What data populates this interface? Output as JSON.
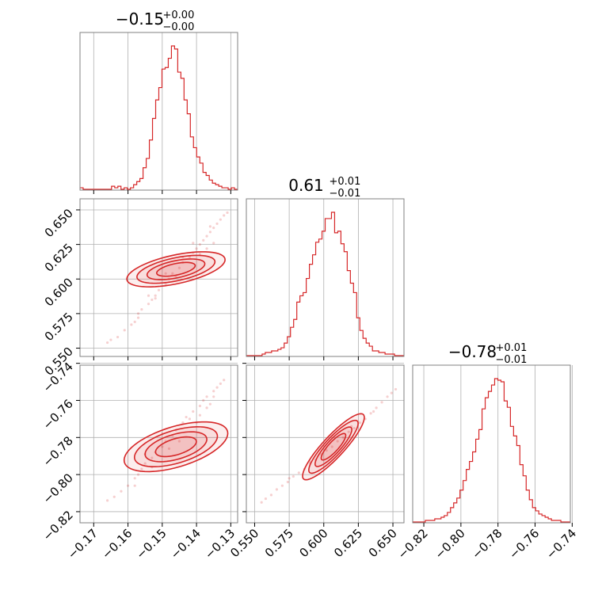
{
  "colors": {
    "accent": "#d62728",
    "grid": "#b0b0b0",
    "frame": "#808080"
  },
  "chart_data": {
    "type": "corner",
    "grid": true,
    "params": [
      {
        "title": {
          "base": "−0.15",
          "sup": "+0.00",
          "sub": "−0.00"
        },
        "range": [
          -0.174,
          -0.128
        ],
        "ticks": [
          -0.17,
          -0.16,
          -0.15,
          -0.14,
          -0.13
        ],
        "tick_labels": [
          "−0.17",
          "−0.16",
          "−0.15",
          "−0.14",
          "−0.13"
        ],
        "hist": [
          0.01,
          0.0,
          0.0,
          0.0,
          0.0,
          0.0,
          0.0,
          0.0,
          0.0,
          0.0,
          0.02,
          0.01,
          0.02,
          0.0,
          0.01,
          0.0,
          0.01,
          0.03,
          0.05,
          0.07,
          0.14,
          0.2,
          0.32,
          0.46,
          0.58,
          0.66,
          0.78,
          0.79,
          0.85,
          0.93,
          0.91,
          0.76,
          0.72,
          0.58,
          0.49,
          0.34,
          0.27,
          0.21,
          0.17,
          0.11,
          0.09,
          0.06,
          0.04,
          0.03,
          0.02,
          0.01,
          0.01,
          0.0,
          0.01,
          0.0
        ]
      },
      {
        "title": {
          "base": "0.61",
          "sup": "+0.01",
          "sub": "−0.01"
        },
        "range": [
          0.544,
          0.658
        ],
        "ticks": [
          0.55,
          0.575,
          0.6,
          0.625,
          0.65
        ],
        "tick_labels": [
          "0.550",
          "0.575",
          "0.600",
          "0.625",
          "0.650"
        ],
        "hist": [
          0.0,
          0.0,
          0.0,
          0.0,
          0.0,
          0.01,
          0.02,
          0.02,
          0.03,
          0.03,
          0.04,
          0.05,
          0.08,
          0.12,
          0.18,
          0.23,
          0.34,
          0.38,
          0.4,
          0.49,
          0.58,
          0.64,
          0.72,
          0.74,
          0.79,
          0.87,
          0.87,
          0.91,
          0.78,
          0.79,
          0.71,
          0.66,
          0.54,
          0.46,
          0.4,
          0.24,
          0.16,
          0.11,
          0.08,
          0.06,
          0.03,
          0.03,
          0.02,
          0.02,
          0.01,
          0.01,
          0.01,
          0.0,
          0.0,
          0.0
        ]
      },
      {
        "title": {
          "base": "−0.78",
          "sup": "+0.01",
          "sub": "−0.01"
        },
        "range": [
          -0.826,
          -0.741
        ],
        "ticks": [
          -0.82,
          -0.8,
          -0.78,
          -0.76,
          -0.74
        ],
        "tick_labels": [
          "−0.82",
          "−0.80",
          "−0.78",
          "−0.76",
          "−0.74"
        ],
        "hist": [
          0.0,
          0.0,
          0.0,
          0.0,
          0.01,
          0.01,
          0.01,
          0.02,
          0.02,
          0.03,
          0.04,
          0.06,
          0.09,
          0.12,
          0.15,
          0.2,
          0.26,
          0.33,
          0.38,
          0.44,
          0.52,
          0.58,
          0.71,
          0.78,
          0.82,
          0.86,
          0.9,
          0.89,
          0.88,
          0.76,
          0.72,
          0.6,
          0.54,
          0.48,
          0.36,
          0.29,
          0.2,
          0.14,
          0.09,
          0.07,
          0.05,
          0.04,
          0.03,
          0.02,
          0.01,
          0.01,
          0.01,
          0.0,
          0.0,
          0.0
        ]
      }
    ],
    "pairs": [
      {
        "x_param": 0,
        "y_param": 1,
        "center": [
          -0.146,
          0.607
        ],
        "angle_deg": 38.7,
        "contour_radii": [
          [
            0.0169,
            0.00075
          ],
          [
            0.0134,
            0.0006
          ],
          [
            0.0099,
            0.00045
          ],
          [
            0.0066,
            0.0003
          ]
        ],
        "scatter": [
          [
            -0.166,
            0.554
          ],
          [
            -0.165,
            0.556
          ],
          [
            -0.163,
            0.558
          ],
          [
            -0.161,
            0.563
          ],
          [
            -0.159,
            0.567
          ],
          [
            -0.158,
            0.569
          ],
          [
            -0.157,
            0.572
          ],
          [
            -0.157,
            0.575
          ],
          [
            -0.156,
            0.578
          ],
          [
            -0.154,
            0.582
          ],
          [
            -0.153,
            0.585
          ],
          [
            -0.152,
            0.588
          ],
          [
            -0.151,
            0.592
          ],
          [
            -0.149,
            0.596
          ],
          [
            -0.148,
            0.6
          ],
          [
            -0.147,
            0.604
          ],
          [
            -0.145,
            0.608
          ],
          [
            -0.144,
            0.612
          ],
          [
            -0.142,
            0.616
          ],
          [
            -0.141,
            0.619
          ],
          [
            -0.14,
            0.622
          ],
          [
            -0.139,
            0.625
          ],
          [
            -0.138,
            0.628
          ],
          [
            -0.137,
            0.631
          ],
          [
            -0.136,
            0.634
          ],
          [
            -0.135,
            0.637
          ],
          [
            -0.134,
            0.64
          ],
          [
            -0.133,
            0.643
          ],
          [
            -0.132,
            0.646
          ],
          [
            -0.131,
            0.648
          ],
          [
            -0.154,
            0.588
          ],
          [
            -0.149,
            0.604
          ],
          [
            -0.144,
            0.616
          ],
          [
            -0.139,
            0.618
          ],
          [
            -0.137,
            0.622
          ],
          [
            -0.135,
            0.626
          ],
          [
            -0.152,
            0.586
          ],
          [
            -0.146,
            0.602
          ],
          [
            -0.141,
            0.626
          ],
          [
            -0.136,
            0.638
          ]
        ]
      },
      {
        "x_param": 0,
        "y_param": 2,
        "center": [
          -0.146,
          -0.785
        ],
        "angle_deg": 38.7,
        "contour_radii": [
          [
            0.0178,
            0.0008
          ],
          [
            0.0142,
            0.00065
          ],
          [
            0.0105,
            0.0005
          ],
          [
            0.007,
            0.00032
          ]
        ],
        "scatter": [
          [
            -0.166,
            -0.814
          ],
          [
            -0.164,
            -0.812
          ],
          [
            -0.162,
            -0.809
          ],
          [
            -0.16,
            -0.806
          ],
          [
            -0.158,
            -0.802
          ],
          [
            -0.157,
            -0.8
          ],
          [
            -0.156,
            -0.797
          ],
          [
            -0.155,
            -0.794
          ],
          [
            -0.153,
            -0.791
          ],
          [
            -0.152,
            -0.788
          ],
          [
            -0.15,
            -0.785
          ],
          [
            -0.149,
            -0.782
          ],
          [
            -0.147,
            -0.779
          ],
          [
            -0.146,
            -0.776
          ],
          [
            -0.144,
            -0.772
          ],
          [
            -0.143,
            -0.769
          ],
          [
            -0.141,
            -0.766
          ],
          [
            -0.139,
            -0.763
          ],
          [
            -0.138,
            -0.76
          ],
          [
            -0.137,
            -0.758
          ],
          [
            -0.135,
            -0.755
          ],
          [
            -0.134,
            -0.753
          ],
          [
            -0.133,
            -0.751
          ],
          [
            -0.132,
            -0.749
          ],
          [
            -0.155,
            -0.789
          ],
          [
            -0.15,
            -0.778
          ],
          [
            -0.145,
            -0.782
          ],
          [
            -0.142,
            -0.77
          ],
          [
            -0.139,
            -0.768
          ],
          [
            -0.136,
            -0.762
          ],
          [
            -0.153,
            -0.796
          ],
          [
            -0.148,
            -0.786
          ],
          [
            -0.14,
            -0.772
          ],
          [
            -0.137,
            -0.764
          ],
          [
            -0.158,
            -0.806
          ],
          [
            -0.135,
            -0.758
          ]
        ]
      },
      {
        "x_param": 1,
        "y_param": 2,
        "center": [
          0.607,
          -0.785
        ],
        "angle_deg": 37.8,
        "contour_radii": [
          [
            0.0278,
            0.00055
          ],
          [
            0.0222,
            0.00045
          ],
          [
            0.0165,
            0.00035
          ],
          [
            0.011,
            0.00025
          ]
        ],
        "scatter": [
          [
            0.555,
            -0.815
          ],
          [
            0.558,
            -0.813
          ],
          [
            0.562,
            -0.811
          ],
          [
            0.566,
            -0.808
          ],
          [
            0.57,
            -0.806
          ],
          [
            0.574,
            -0.804
          ],
          [
            0.578,
            -0.801
          ],
          [
            0.582,
            -0.799
          ],
          [
            0.586,
            -0.797
          ],
          [
            0.59,
            -0.794
          ],
          [
            0.594,
            -0.792
          ],
          [
            0.598,
            -0.789
          ],
          [
            0.602,
            -0.787
          ],
          [
            0.606,
            -0.785
          ],
          [
            0.61,
            -0.782
          ],
          [
            0.614,
            -0.78
          ],
          [
            0.618,
            -0.777
          ],
          [
            0.622,
            -0.775
          ],
          [
            0.626,
            -0.772
          ],
          [
            0.63,
            -0.77
          ],
          [
            0.634,
            -0.767
          ],
          [
            0.638,
            -0.764
          ],
          [
            0.642,
            -0.761
          ],
          [
            0.646,
            -0.758
          ],
          [
            0.649,
            -0.756
          ],
          [
            0.652,
            -0.754
          ],
          [
            0.575,
            -0.802
          ],
          [
            0.59,
            -0.793
          ],
          [
            0.62,
            -0.774
          ],
          [
            0.636,
            -0.766
          ]
        ]
      }
    ]
  }
}
